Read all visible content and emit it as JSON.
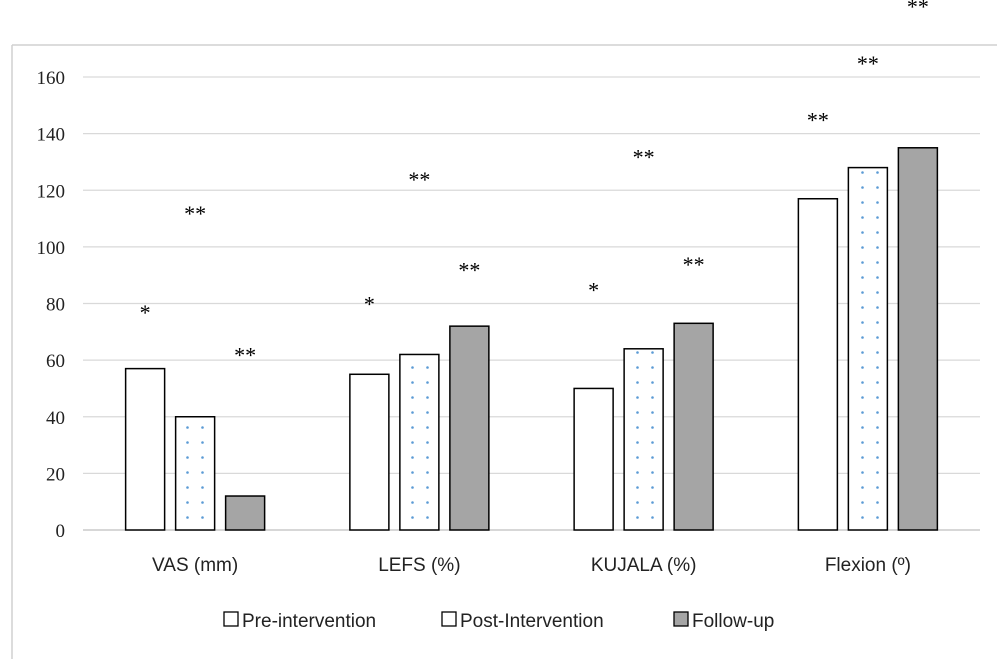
{
  "chart_data": {
    "type": "bar",
    "categories": [
      "VAS (mm)",
      "LEFS (%)",
      "KUJALA (%)",
      "Flexion (º)"
    ],
    "series": [
      {
        "name": "Pre-intervention",
        "values": [
          57,
          55,
          50,
          117
        ],
        "style": "plain"
      },
      {
        "name": "Post-Intervention",
        "values": [
          40,
          62,
          64,
          128
        ],
        "style": "dotted"
      },
      {
        "name": "Follow-up",
        "values": [
          12,
          72,
          73,
          135
        ],
        "style": "filled"
      }
    ],
    "ylim": [
      0,
      160
    ],
    "yticks": [
      0,
      20,
      40,
      60,
      80,
      100,
      120,
      140,
      160
    ],
    "grid": true,
    "legend": "bottom-center",
    "annotations": [
      {
        "category": 0,
        "series": 0,
        "text": "*",
        "y": 77
      },
      {
        "category": 0,
        "series": 1,
        "text": "**",
        "y": 112
      },
      {
        "category": 0,
        "series": 2,
        "text": "**",
        "y": 62
      },
      {
        "category": 1,
        "series": 0,
        "text": "*",
        "y": 80
      },
      {
        "category": 1,
        "series": 1,
        "text": "**",
        "y": 124
      },
      {
        "category": 1,
        "series": 2,
        "text": "**",
        "y": 92
      },
      {
        "category": 2,
        "series": 0,
        "text": "*",
        "y": 85
      },
      {
        "category": 2,
        "series": 1,
        "text": "**",
        "y": 132
      },
      {
        "category": 2,
        "series": 2,
        "text": "**",
        "y": 94
      },
      {
        "category": 3,
        "series": 0,
        "text": "**",
        "y": 145
      },
      {
        "category": 3,
        "series": 1,
        "text": "**",
        "y": 165
      },
      {
        "category": 3,
        "series": 2,
        "text": "**",
        "y": 185
      }
    ],
    "colors": {
      "plain_fill": "#ffffff",
      "dotted_fill": "#ffffff",
      "dot_color": "#5b9bd5",
      "filled_fill": "#a5a5a5",
      "bar_stroke": "#000000",
      "grid": "#d9d9d9",
      "frame": "#d0d0d0"
    }
  }
}
